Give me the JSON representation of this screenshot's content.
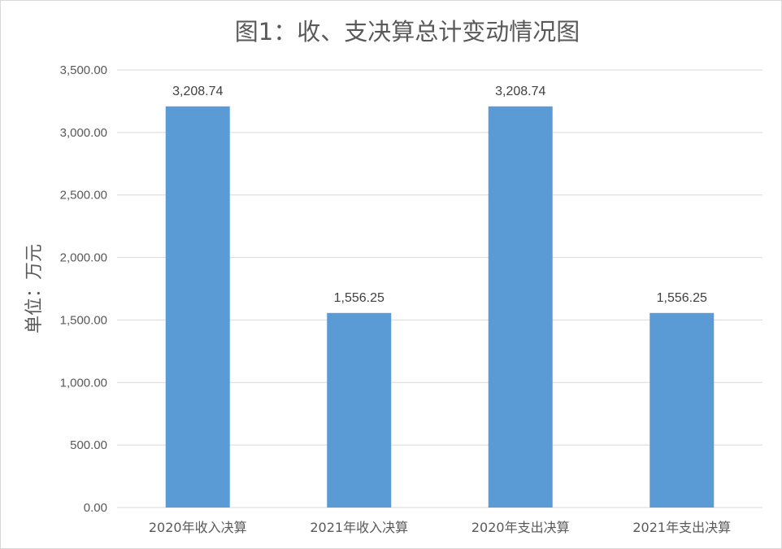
{
  "chart_data": {
    "type": "bar",
    "title": "图1：收、支决算总计变动情况图",
    "xlabel": "",
    "ylabel": "单位：万元",
    "categories": [
      "2020年收入决算",
      "2021年收入决算",
      "2020年支出决算",
      "2021年支出决算"
    ],
    "values": [
      3208.74,
      1556.25,
      3208.74,
      1556.25
    ],
    "data_labels": [
      "3,208.74",
      "1,556.25",
      "3,208.74",
      "1,556.25"
    ],
    "ylim": [
      0,
      3500
    ],
    "yticks": [
      0,
      500,
      1000,
      1500,
      2000,
      2500,
      3000,
      3500
    ],
    "ytick_labels": [
      "0.00",
      "500.00",
      "1,000.00",
      "1,500.00",
      "2,000.00",
      "2,500.00",
      "3,000.00",
      "3,500.00"
    ],
    "grid": true,
    "legend": "none",
    "colors": {
      "bar": "#5b9bd5",
      "grid": "#d9d9d9",
      "text": "#595959"
    }
  }
}
